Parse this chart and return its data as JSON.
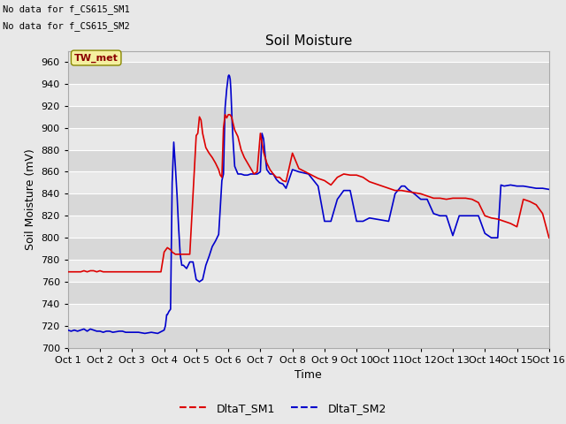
{
  "title": "Soil Moisture",
  "ylabel": "Soil Moisture (mV)",
  "xlabel": "Time",
  "ylim": [
    700,
    970
  ],
  "yticks": [
    700,
    720,
    740,
    760,
    780,
    800,
    820,
    840,
    860,
    880,
    900,
    920,
    940,
    960
  ],
  "xtick_labels": [
    "Oct 1",
    "Oct 2",
    "Oct 3",
    "Oct 4",
    "Oct 5",
    "Oct 6",
    "Oct 7",
    "Oct 8",
    "Oct 9",
    "Oct 10",
    "Oct 11",
    "Oct 12",
    "Oct 13",
    "Oct 14",
    "Oct 15",
    "Oct 16"
  ],
  "annotations": [
    "No data for f_CS615_SM1",
    "No data for f_CS615_SM2"
  ],
  "legend_label": "TW_met",
  "line1_label": "DltaT_SM1",
  "line2_label": "DltaT_SM2",
  "line1_color": "#dd0000",
  "line2_color": "#0000cc",
  "background_color": "#e8e8e8",
  "plot_bg_color": "#e8e8e8",
  "grid_color": "#ffffff",
  "band_color1": "#e8e8e8",
  "band_color2": "#d8d8d8",
  "sm1_x": [
    0.0,
    0.1,
    0.2,
    0.3,
    0.4,
    0.5,
    0.6,
    0.7,
    0.8,
    0.9,
    1.0,
    1.1,
    1.2,
    1.3,
    1.4,
    1.5,
    1.6,
    1.7,
    1.8,
    1.9,
    2.0,
    2.1,
    2.2,
    2.3,
    2.4,
    2.5,
    2.6,
    2.7,
    2.8,
    2.9,
    3.0,
    3.05,
    3.1,
    3.15,
    3.2,
    3.25,
    3.3,
    3.35,
    3.4,
    3.6,
    3.8,
    4.0,
    4.05,
    4.1,
    4.15,
    4.2,
    4.3,
    4.4,
    4.5,
    4.6,
    4.7,
    4.75,
    4.8,
    4.85,
    4.9,
    4.95,
    5.0,
    5.05,
    5.1,
    5.2,
    5.3,
    5.4,
    5.5,
    5.6,
    5.7,
    5.8,
    5.9,
    6.0,
    6.1,
    6.2,
    6.3,
    6.4,
    6.5,
    6.6,
    6.7,
    6.8,
    7.0,
    7.2,
    7.4,
    7.6,
    7.8,
    8.0,
    8.2,
    8.4,
    8.6,
    8.8,
    9.0,
    9.2,
    9.4,
    9.5,
    9.6,
    9.8,
    10.0,
    10.2,
    10.4,
    10.6,
    10.8,
    11.0,
    11.2,
    11.4,
    11.6,
    11.8,
    12.0,
    12.2,
    12.4,
    12.6,
    12.8,
    13.0,
    13.2,
    13.4,
    13.6,
    13.8,
    14.0,
    14.2,
    14.4,
    14.6,
    14.8,
    15.0
  ],
  "sm1_y": [
    769,
    769,
    769,
    769,
    769,
    770,
    769,
    770,
    770,
    769,
    770,
    769,
    769,
    769,
    769,
    769,
    769,
    769,
    769,
    769,
    769,
    769,
    769,
    769,
    769,
    769,
    769,
    769,
    769,
    769,
    787,
    789,
    791,
    790,
    789,
    787,
    786,
    785,
    785,
    785,
    785,
    893,
    895,
    910,
    907,
    895,
    882,
    877,
    873,
    868,
    862,
    857,
    855,
    900,
    912,
    909,
    912,
    912,
    910,
    898,
    892,
    880,
    873,
    868,
    863,
    858,
    860,
    895,
    878,
    868,
    862,
    858,
    855,
    855,
    852,
    851,
    877,
    863,
    860,
    857,
    854,
    852,
    848,
    855,
    858,
    857,
    857,
    855,
    851,
    850,
    849,
    847,
    845,
    843,
    843,
    842,
    841,
    840,
    838,
    836,
    836,
    835,
    836,
    836,
    836,
    835,
    832,
    820,
    818,
    817,
    815,
    813,
    810,
    835,
    833,
    830,
    822,
    800
  ],
  "sm2_x": [
    0.0,
    0.1,
    0.2,
    0.3,
    0.4,
    0.5,
    0.6,
    0.7,
    0.8,
    0.9,
    1.0,
    1.1,
    1.2,
    1.3,
    1.4,
    1.6,
    1.7,
    1.8,
    2.0,
    2.2,
    2.4,
    2.6,
    2.8,
    3.0,
    3.02,
    3.04,
    3.06,
    3.08,
    3.1,
    3.15,
    3.2,
    3.25,
    3.3,
    3.35,
    3.4,
    3.45,
    3.5,
    3.55,
    3.6,
    3.7,
    3.8,
    3.9,
    4.0,
    4.1,
    4.2,
    4.3,
    4.4,
    4.5,
    4.6,
    4.7,
    4.75,
    4.8,
    4.85,
    4.9,
    4.95,
    5.0,
    5.02,
    5.04,
    5.06,
    5.08,
    5.1,
    5.12,
    5.15,
    5.2,
    5.3,
    5.4,
    5.5,
    5.6,
    5.7,
    5.8,
    5.9,
    6.0,
    6.05,
    6.1,
    6.15,
    6.2,
    6.3,
    6.4,
    6.5,
    6.6,
    6.7,
    6.8,
    7.0,
    7.2,
    7.5,
    7.8,
    8.0,
    8.2,
    8.4,
    8.6,
    8.8,
    9.0,
    9.2,
    9.4,
    9.6,
    9.8,
    10.0,
    10.2,
    10.4,
    10.5,
    10.6,
    10.8,
    11.0,
    11.2,
    11.4,
    11.6,
    11.8,
    12.0,
    12.2,
    12.4,
    12.6,
    12.8,
    13.0,
    13.1,
    13.2,
    13.3,
    13.4,
    13.5,
    13.6,
    13.8,
    14.0,
    14.2,
    14.4,
    14.6,
    14.8,
    15.0
  ],
  "sm2_y": [
    716,
    715,
    716,
    715,
    716,
    717,
    715,
    717,
    716,
    715,
    715,
    714,
    715,
    715,
    714,
    715,
    715,
    714,
    714,
    714,
    713,
    714,
    713,
    716,
    718,
    720,
    725,
    730,
    730,
    733,
    735,
    850,
    887,
    865,
    840,
    810,
    785,
    775,
    775,
    772,
    778,
    778,
    762,
    760,
    762,
    775,
    783,
    792,
    797,
    803,
    827,
    852,
    858,
    918,
    935,
    947,
    948,
    947,
    944,
    935,
    920,
    905,
    888,
    865,
    858,
    858,
    857,
    857,
    858,
    858,
    858,
    860,
    895,
    890,
    875,
    862,
    858,
    858,
    853,
    850,
    849,
    845,
    862,
    860,
    858,
    847,
    815,
    815,
    835,
    843,
    843,
    815,
    815,
    818,
    817,
    816,
    815,
    840,
    847,
    847,
    844,
    840,
    835,
    835,
    822,
    820,
    820,
    802,
    820,
    820,
    820,
    820,
    804,
    802,
    800,
    800,
    800,
    848,
    847,
    848,
    847,
    847,
    846,
    845,
    845,
    844
  ]
}
